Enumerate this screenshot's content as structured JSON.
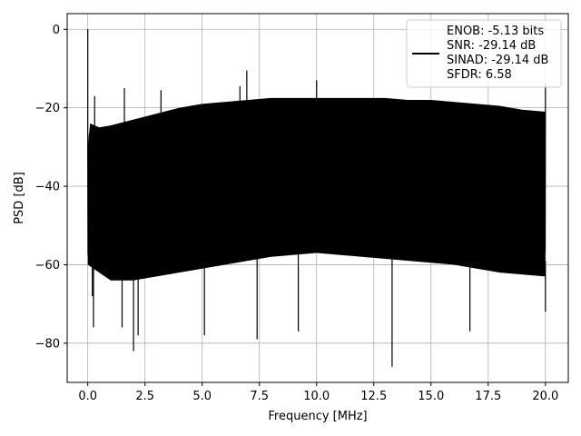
{
  "chart_data": {
    "type": "line",
    "xlabel": "Frequency [MHz]",
    "ylabel": "PSD [dB]",
    "xlim": [
      -0.9,
      21.0
    ],
    "ylim": [
      -90,
      4
    ],
    "xticks": [
      0.0,
      2.5,
      5.0,
      7.5,
      10.0,
      12.5,
      15.0,
      17.5,
      20.0
    ],
    "xtick_labels": [
      "0.0",
      "2.5",
      "5.0",
      "7.5",
      "10.0",
      "12.5",
      "15.0",
      "17.5",
      "20.0"
    ],
    "yticks": [
      0,
      -20,
      -40,
      -60,
      -80
    ],
    "ytick_labels": [
      "0",
      "−20",
      "−40",
      "−60",
      "−80"
    ],
    "grid": true,
    "legend_position": "top-right",
    "line_color": "#000000",
    "series": [
      {
        "envelope_upper": {
          "x": [
            0.0,
            0.1,
            0.5,
            1.0,
            2.0,
            3.0,
            4.0,
            5.0,
            6.0,
            7.0,
            8.0,
            9.0,
            10.0,
            11.0,
            12.0,
            13.0,
            14.0,
            15.0,
            16.0,
            17.0,
            18.0,
            19.0,
            20.0
          ],
          "y": [
            -30,
            -24,
            -25,
            -24.5,
            -23,
            -21.5,
            -20,
            -19,
            -18.5,
            -18,
            -17.5,
            -17.5,
            -17.5,
            -17.5,
            -17.5,
            -17.5,
            -18,
            -18,
            -18.5,
            -19,
            -19.5,
            -20.5,
            -21
          ]
        },
        "envelope_lower": {
          "x": [
            0.0,
            1.0,
            2.0,
            4.0,
            6.0,
            8.0,
            10.0,
            12.0,
            14.0,
            16.0,
            18.0,
            20.0
          ],
          "y": [
            -60,
            -64,
            -64,
            -62,
            -60,
            -58,
            -57,
            -58,
            -59,
            -60,
            -62,
            -63
          ]
        },
        "peaks": [
          {
            "x": 0.0,
            "y": 0
          },
          {
            "x": 0.3,
            "y": -17
          },
          {
            "x": 1.6,
            "y": -15
          },
          {
            "x": 3.2,
            "y": -15.5
          },
          {
            "x": 6.65,
            "y": -14.5
          },
          {
            "x": 6.95,
            "y": -10.5
          },
          {
            "x": 10.0,
            "y": -13
          },
          {
            "x": 20.0,
            "y": -14
          }
        ],
        "dips": [
          {
            "x": 0.2,
            "y": -68
          },
          {
            "x": 0.25,
            "y": -76
          },
          {
            "x": 2.0,
            "y": -82
          },
          {
            "x": 2.2,
            "y": -78
          },
          {
            "x": 1.5,
            "y": -76
          },
          {
            "x": 5.1,
            "y": -78
          },
          {
            "x": 7.4,
            "y": -79
          },
          {
            "x": 9.2,
            "y": -77
          },
          {
            "x": 13.3,
            "y": -86
          },
          {
            "x": 16.7,
            "y": -77
          },
          {
            "x": 20.0,
            "y": -72
          }
        ]
      }
    ]
  },
  "legend": {
    "lines": [
      "ENOB: -5.13 bits",
      "SNR: -29.14 dB",
      "SINAD: -29.14 dB",
      "SFDR: 6.58"
    ]
  }
}
